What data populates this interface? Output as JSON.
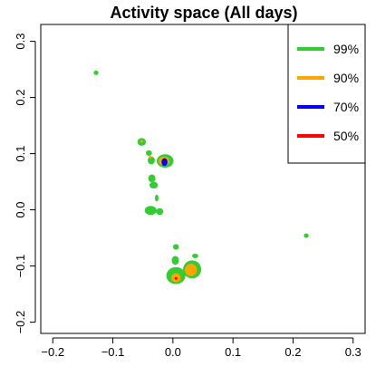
{
  "chart_data": {
    "type": "contour",
    "title": "Activity space (All days)",
    "xlabel": "",
    "ylabel": "",
    "xlim": [
      -0.22,
      0.32
    ],
    "ylim": [
      -0.22,
      0.33
    ],
    "x_ticks": [
      -0.2,
      -0.1,
      0.0,
      0.1,
      0.2,
      0.3
    ],
    "x_tick_labels": [
      "−0.2",
      "−0.1",
      "0.0",
      "0.1",
      "0.2",
      "0.3"
    ],
    "y_ticks": [
      -0.2,
      -0.1,
      0.0,
      0.1,
      0.2,
      0.3
    ],
    "y_tick_labels": [
      "−0.2",
      "−0.1",
      "0.0",
      "0.1",
      "0.2",
      "0.3"
    ],
    "grid": false,
    "legend_position": "top-right",
    "series": [
      {
        "name": "99%",
        "color": "#33cc33"
      },
      {
        "name": "90%",
        "color": "#ffa500"
      },
      {
        "name": "70%",
        "color": "#0000ff"
      },
      {
        "name": "50%",
        "color": "#ff0000"
      }
    ],
    "regions": [
      {
        "level": "99%",
        "cx": -0.128,
        "cy": 0.244,
        "rx": 0.004,
        "ry": 0.004
      },
      {
        "level": "99%",
        "cx": -0.052,
        "cy": 0.121,
        "rx": 0.007,
        "ry": 0.007
      },
      {
        "level": "99%",
        "cx": -0.04,
        "cy": 0.101,
        "rx": 0.005,
        "ry": 0.005
      },
      {
        "level": "99%",
        "cx": -0.013,
        "cy": 0.087,
        "rx": 0.014,
        "ry": 0.012
      },
      {
        "level": "99%",
        "cx": -0.036,
        "cy": 0.088,
        "rx": 0.006,
        "ry": 0.007
      },
      {
        "level": "99%",
        "cx": -0.035,
        "cy": 0.056,
        "rx": 0.006,
        "ry": 0.007
      },
      {
        "level": "99%",
        "cx": -0.032,
        "cy": 0.044,
        "rx": 0.007,
        "ry": 0.006
      },
      {
        "level": "99%",
        "cx": -0.027,
        "cy": 0.021,
        "rx": 0.003,
        "ry": 0.006
      },
      {
        "level": "99%",
        "cx": -0.037,
        "cy": -0.001,
        "rx": 0.01,
        "ry": 0.008
      },
      {
        "level": "99%",
        "cx": -0.022,
        "cy": -0.003,
        "rx": 0.006,
        "ry": 0.006
      },
      {
        "level": "99%",
        "cx": 0.005,
        "cy": -0.066,
        "rx": 0.005,
        "ry": 0.005
      },
      {
        "level": "99%",
        "cx": 0.004,
        "cy": -0.09,
        "rx": 0.006,
        "ry": 0.008
      },
      {
        "level": "99%",
        "cx": 0.037,
        "cy": -0.082,
        "rx": 0.005,
        "ry": 0.004
      },
      {
        "level": "99%",
        "cx": 0.005,
        "cy": -0.117,
        "rx": 0.016,
        "ry": 0.015
      },
      {
        "level": "99%",
        "cx": 0.032,
        "cy": -0.106,
        "rx": 0.015,
        "ry": 0.016
      },
      {
        "level": "99%",
        "cx": 0.222,
        "cy": -0.046,
        "rx": 0.004,
        "ry": 0.004
      },
      {
        "level": "90%",
        "cx": -0.052,
        "cy": 0.122,
        "rx": 0.002,
        "ry": 0.002
      },
      {
        "level": "90%",
        "cx": -0.038,
        "cy": 0.094,
        "rx": 0.002,
        "ry": 0.002
      },
      {
        "level": "90%",
        "cx": -0.015,
        "cy": 0.087,
        "rx": 0.009,
        "ry": 0.008
      },
      {
        "level": "90%",
        "cx": 0.005,
        "cy": -0.121,
        "rx": 0.008,
        "ry": 0.008
      },
      {
        "level": "90%",
        "cx": 0.03,
        "cy": -0.107,
        "rx": 0.01,
        "ry": 0.011
      },
      {
        "level": "70%",
        "cx": -0.014,
        "cy": 0.085,
        "rx": 0.005,
        "ry": 0.007
      },
      {
        "level": "50%",
        "cx": 0.005,
        "cy": -0.122,
        "rx": 0.0015,
        "ry": 0.0015
      }
    ]
  }
}
